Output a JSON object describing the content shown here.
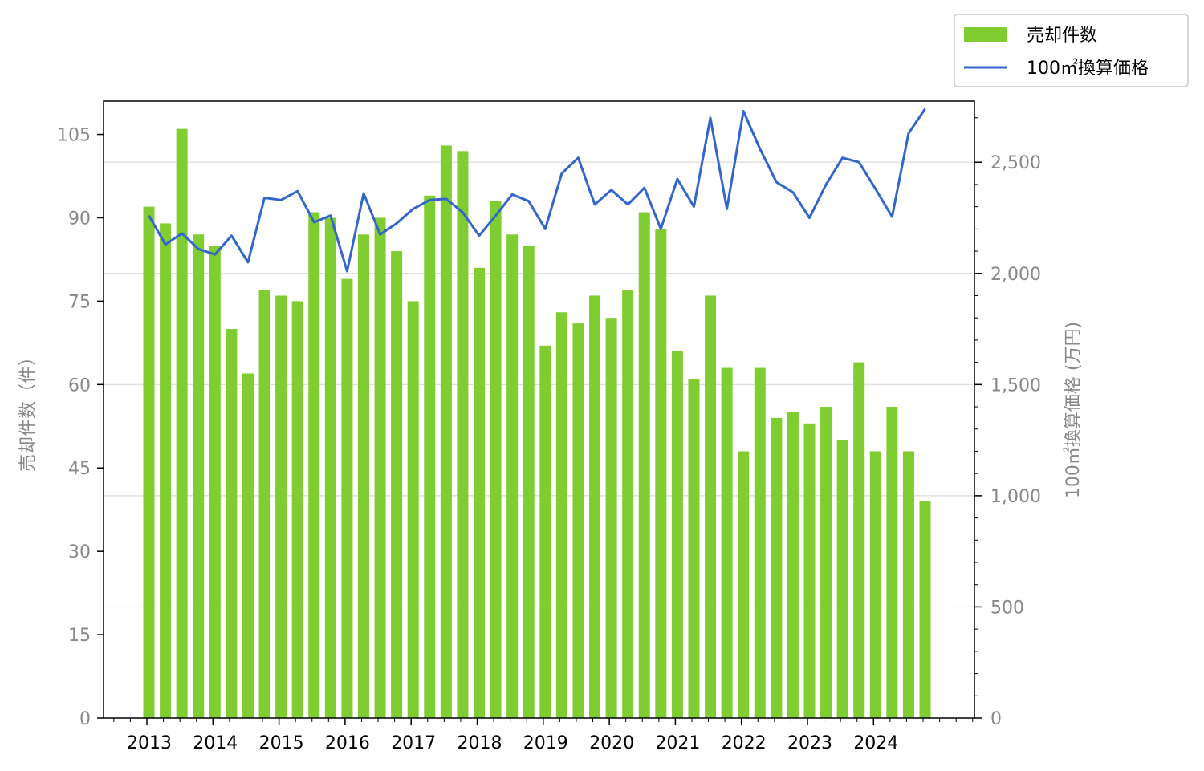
{
  "chart_data": {
    "type": "bar",
    "quarters_per_year": 4,
    "x": [
      "2013-Q1",
      "2013-Q2",
      "2013-Q3",
      "2013-Q4",
      "2014-Q1",
      "2014-Q2",
      "2014-Q3",
      "2014-Q4",
      "2015-Q1",
      "2015-Q2",
      "2015-Q3",
      "2015-Q4",
      "2016-Q1",
      "2016-Q2",
      "2016-Q3",
      "2016-Q4",
      "2017-Q1",
      "2017-Q2",
      "2017-Q3",
      "2017-Q4",
      "2018-Q1",
      "2018-Q2",
      "2018-Q3",
      "2018-Q4",
      "2019-Q1",
      "2019-Q2",
      "2019-Q3",
      "2019-Q4",
      "2020-Q1",
      "2020-Q2",
      "2020-Q3",
      "2020-Q4",
      "2021-Q1",
      "2021-Q2",
      "2021-Q3",
      "2021-Q4",
      "2022-Q1",
      "2022-Q2",
      "2022-Q3",
      "2022-Q4",
      "2023-Q1",
      "2023-Q2",
      "2023-Q3",
      "2023-Q4",
      "2024-Q1",
      "2024-Q2",
      "2024-Q3",
      "2024-Q4"
    ],
    "x_tick_labels": [
      "2013",
      "2014",
      "2015",
      "2016",
      "2017",
      "2018",
      "2019",
      "2020",
      "2021",
      "2022",
      "2023",
      "2024"
    ],
    "series": [
      {
        "name": "売却件数",
        "type": "bar",
        "axis": "left",
        "color": "#7fcd31",
        "values": [
          92,
          89,
          106,
          87,
          85,
          70,
          62,
          77,
          76,
          75,
          91,
          90,
          79,
          87,
          90,
          84,
          75,
          94,
          103,
          102,
          81,
          93,
          87,
          85,
          67,
          73,
          71,
          76,
          72,
          77,
          91,
          88,
          66,
          61,
          76,
          63,
          48,
          63,
          54,
          55,
          53,
          56,
          50,
          64,
          48,
          56,
          48,
          39
        ]
      },
      {
        "name": "100㎡換算価格",
        "type": "line",
        "axis": "right",
        "color": "#3366cc",
        "values": [
          2260,
          2130,
          2180,
          2110,
          2085,
          2170,
          2050,
          2340,
          2330,
          2370,
          2230,
          2260,
          2010,
          2360,
          2175,
          2225,
          2290,
          2330,
          2335,
          2275,
          2170,
          2260,
          2355,
          2325,
          2200,
          2450,
          2520,
          2310,
          2375,
          2310,
          2385,
          2200,
          2425,
          2300,
          2700,
          2290,
          2730,
          2560,
          2410,
          2365,
          2250,
          2400,
          2520,
          2500,
          2380,
          2255,
          2630,
          2740
        ]
      }
    ],
    "left_axis": {
      "label": "売却件数（件）",
      "ticks": [
        0,
        15,
        30,
        45,
        60,
        75,
        90,
        105
      ],
      "range": [
        0,
        111
      ]
    },
    "right_axis": {
      "label": "100㎡換算価格 (万円)",
      "ticks": [
        "0",
        "500",
        "1,000",
        "1,500",
        "2,000",
        "2,500"
      ],
      "tick_values": [
        0,
        500,
        1000,
        1500,
        2000,
        2500
      ],
      "range": [
        0,
        2775
      ]
    },
    "grid": "horizontal at right-axis major ticks",
    "legend_position": "top-right, above plot"
  }
}
